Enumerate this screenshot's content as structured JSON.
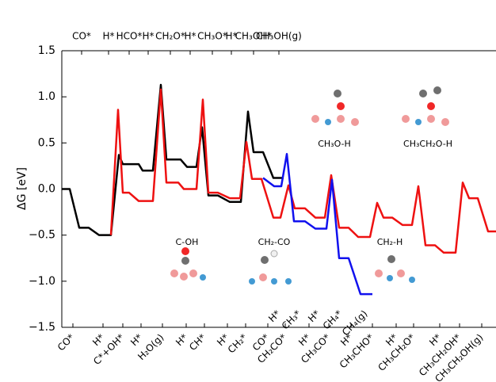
{
  "chart_data": {
    "type": "line",
    "ylabel": "ΔG [eV]",
    "xlim": [
      0,
      54.8
    ],
    "ylim": [
      -1.5,
      1.5
    ],
    "yticks": [
      1.5,
      {
        "value": 1,
        "label": "1.0"
      },
      0.5,
      {
        "value": 0,
        "label": "0.0"
      },
      {
        "value": -0.5,
        "label": "−0.5"
      },
      {
        "value": -1,
        "label": "−1.0"
      },
      {
        "value": -1.5,
        "label": "−1.5"
      }
    ],
    "series": [
      {
        "color": "#000000",
        "x": [
          0,
          1,
          2.2,
          3.4,
          4.7,
          6.2,
          7.2,
          7.7,
          9.7,
          10.2,
          11.5,
          12.5,
          13.2,
          15,
          15.8,
          17,
          17.7,
          18.5,
          19.7,
          21.2,
          22.6,
          23.5,
          24.2,
          25.4,
          26.7,
          28
        ],
        "values": [
          0,
          0,
          -0.42,
          -0.42,
          -0.5,
          -0.5,
          0.37,
          0.27,
          0.27,
          0.2,
          0.2,
          1.13,
          0.32,
          0.32,
          0.24,
          0.24,
          0.67,
          -0.07,
          -0.07,
          -0.14,
          -0.14,
          0.84,
          0.4,
          0.4,
          0.12,
          0.12
        ]
      },
      {
        "color": "#ee1111",
        "x": [
          6.2,
          7.1,
          7.7,
          8.5,
          9.7,
          11.5,
          12.5,
          13.2,
          14.7,
          15.4,
          17,
          17.8,
          18.5,
          19.7,
          21.2,
          22.5,
          23.3,
          24,
          25.2,
          26.7,
          27.6,
          28.6,
          29.4,
          30.7,
          32,
          33.2,
          34,
          35,
          36.2,
          37.4,
          38.9,
          39.8,
          40.6,
          41.7,
          43,
          44.2,
          45,
          45.9,
          47.1,
          48.2,
          49.7,
          50.6,
          51.4,
          52.5,
          53.8,
          54.8
        ],
        "values": [
          -0.5,
          0.86,
          -0.04,
          -0.04,
          -0.13,
          -0.13,
          1.08,
          0.07,
          0.07,
          0,
          0,
          0.97,
          -0.04,
          -0.04,
          -0.1,
          -0.1,
          0.51,
          0.11,
          0.11,
          -0.31,
          -0.31,
          0.04,
          -0.21,
          -0.21,
          -0.31,
          -0.31,
          0.15,
          -0.42,
          -0.42,
          -0.52,
          -0.52,
          -0.15,
          -0.31,
          -0.31,
          -0.39,
          -0.39,
          0.03,
          -0.61,
          -0.61,
          -0.69,
          -0.69,
          0.07,
          -0.1,
          -0.1,
          -0.46,
          -0.46
        ]
      },
      {
        "color": "#1111ee",
        "x": [
          25.4,
          26.8,
          27.7,
          28.4,
          29.3,
          30.7,
          32,
          33.4,
          34.1,
          35,
          36.2,
          37.7,
          39.2
        ],
        "values": [
          0.12,
          0.03,
          0.03,
          0.38,
          -0.35,
          -0.35,
          -0.43,
          -0.43,
          0.1,
          -0.75,
          -0.75,
          -1.14,
          -1.14
        ]
      }
    ],
    "xticks_top": [
      {
        "value": 2.5,
        "label": "CO*"
      },
      {
        "value": 5.9,
        "label": "H*"
      },
      {
        "value": 8.5,
        "label": "HCO*"
      },
      {
        "value": 10.9,
        "label": "H*"
      },
      {
        "value": 13.7,
        "label": "CH₂O*"
      },
      {
        "value": 16.2,
        "label": "H*"
      },
      {
        "value": 19,
        "label": "CH₃O*"
      },
      {
        "value": 21.4,
        "label": "H*"
      },
      {
        "value": 24.2,
        "label": "CH₃OH*"
      },
      {
        "value": 27.4,
        "label": "CH₃OH(g)"
      }
    ],
    "xticks_top_color": "#000000",
    "xticks_bottom": [
      {
        "value": 1.4,
        "label": "CO*"
      },
      {
        "value": 5.2,
        "label": "H*"
      },
      {
        "value": 7.7,
        "label": "C*+OH*"
      },
      {
        "value": 10,
        "label": "H*"
      },
      {
        "value": 12.7,
        "label": "H₂O(g)"
      },
      {
        "value": 15.7,
        "label": "H*"
      },
      {
        "value": 18,
        "label": "CH*"
      },
      {
        "value": 20.9,
        "label": "H*"
      },
      {
        "value": 23.2,
        "label": "CH₂*"
      },
      {
        "value": 26,
        "label": "CO*"
      },
      {
        "value": 28.2,
        "label": "CH₂CO*"
      },
      {
        "value": 31.2,
        "label": "H*"
      },
      {
        "value": 33.7,
        "label": "CH₃CO*"
      },
      {
        "value": 36.5,
        "label": "H*"
      },
      {
        "value": 39.2,
        "label": "CH₃CHO*"
      },
      {
        "value": 42.2,
        "label": "H*"
      },
      {
        "value": 44.4,
        "label": "CH₃CH₂O*"
      },
      {
        "value": 47.7,
        "label": "H*"
      },
      {
        "value": 50.2,
        "label": "CH₃CH₂OH*"
      },
      {
        "value": 53,
        "label": "CH₃CH₂OH(g)"
      }
    ],
    "xticks_bottom_color": "#ee1111",
    "xticks_inner": [
      {
        "value": 27.4,
        "label": "H*"
      },
      {
        "value": 30,
        "label": "CH₃*"
      },
      {
        "value": 32.4,
        "label": "H*"
      },
      {
        "value": 35.2,
        "label": "CH₄*"
      },
      {
        "value": 38.4,
        "label": "CH₄(g)"
      }
    ],
    "xticks_inner_color": "#1111ee",
    "annotations": [
      "C-OH",
      "CH₂-CO",
      "CH₂-H",
      "CH₃O-H",
      "CH₃CH₂O-H"
    ]
  }
}
